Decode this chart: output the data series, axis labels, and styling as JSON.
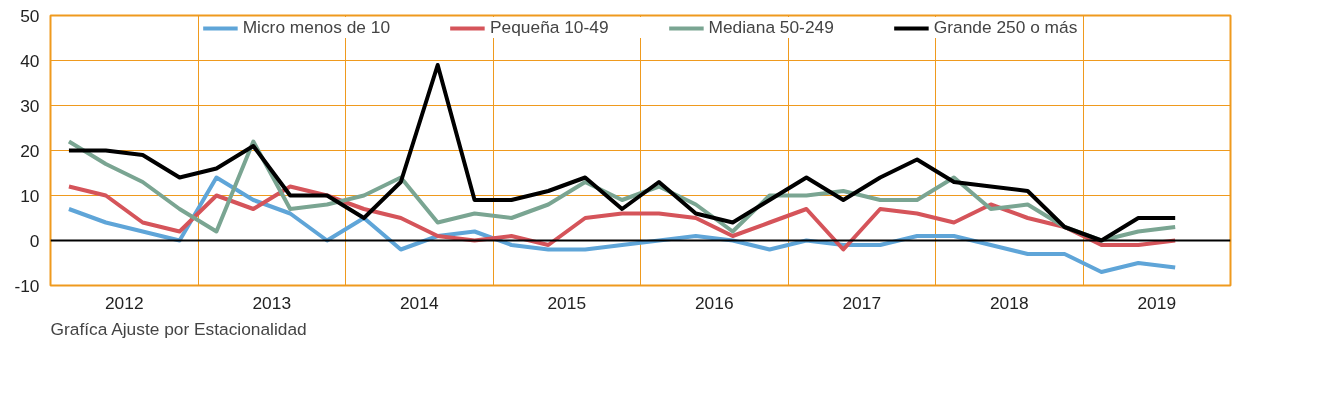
{
  "chart_data": {
    "type": "line",
    "x": [
      2012.125,
      2012.375,
      2012.625,
      2012.875,
      2013.125,
      2013.375,
      2013.625,
      2013.875,
      2014.125,
      2014.375,
      2014.625,
      2014.875,
      2015.125,
      2015.375,
      2015.625,
      2015.875,
      2016.125,
      2016.375,
      2016.625,
      2016.875,
      2017.125,
      2017.375,
      2017.625,
      2017.875,
      2018.125,
      2018.375,
      2018.625,
      2018.875,
      2019.125,
      2019.375,
      2019.625
    ],
    "series": [
      {
        "name": "Micro menos de 10",
        "color": "#5fa5d8",
        "values": [
          7,
          4,
          2,
          0,
          14,
          9,
          6,
          0,
          5,
          -2,
          1,
          2,
          -1,
          -2,
          -2,
          -1,
          0,
          1,
          0,
          -2,
          0,
          -1,
          -1,
          1,
          1,
          -1,
          -3,
          -3,
          -7,
          -5,
          -6
        ]
      },
      {
        "name": "Pequeña 10-49",
        "color": "#d5545a",
        "values": [
          12,
          10,
          4,
          2,
          10,
          7,
          12,
          10,
          7,
          5,
          1,
          0,
          1,
          -1,
          5,
          6,
          6,
          5,
          1,
          4,
          7,
          -2,
          7,
          6,
          4,
          8,
          5,
          3,
          -1,
          -1,
          0
        ]
      },
      {
        "name": "Mediana 50-249",
        "color": "#7aa592",
        "values": [
          22,
          17,
          13,
          7,
          2,
          22,
          7,
          8,
          10,
          14,
          4,
          6,
          5,
          8,
          13,
          9,
          12,
          8,
          2,
          10,
          10,
          11,
          9,
          9,
          14,
          7,
          8,
          3,
          0,
          2,
          3
        ]
      },
      {
        "name": "Grande 250 o más",
        "color": "#000000",
        "values": [
          20,
          20,
          19,
          14,
          16,
          21,
          10,
          10,
          5,
          13,
          39,
          9,
          9,
          11,
          14,
          7,
          13,
          6,
          4,
          9,
          14,
          9,
          14,
          18,
          13,
          12,
          11,
          3,
          0,
          5,
          5
        ]
      }
    ],
    "xlim": [
      2012,
      2020
    ],
    "xticks": [
      {
        "value": 2012.5,
        "label": "2012"
      },
      {
        "value": 2013,
        "label": null
      },
      {
        "value": 2013.5,
        "label": "2013"
      },
      {
        "value": 2014,
        "label": null
      },
      {
        "value": 2014.5,
        "label": "2014"
      },
      {
        "value": 2015,
        "label": null
      },
      {
        "value": 2015.5,
        "label": "2015"
      },
      {
        "value": 2016,
        "label": null
      },
      {
        "value": 2016.5,
        "label": "2016"
      },
      {
        "value": 2017,
        "label": null
      },
      {
        "value": 2017.5,
        "label": "2017"
      },
      {
        "value": 2018,
        "label": null
      },
      {
        "value": 2018.5,
        "label": "2018"
      },
      {
        "value": 2019,
        "label": null
      },
      {
        "value": 2019.5,
        "label": "2019"
      }
    ],
    "ylim": [
      -10,
      50
    ],
    "yticks": [
      -10,
      0,
      10,
      20,
      30,
      40,
      50
    ],
    "ref_lines": [
      {
        "axis": "y",
        "value": 0,
        "color": "#000000"
      }
    ],
    "grid": true,
    "legend": "top",
    "line_style": "solid",
    "annotations": [
      "Grafíca Ajuste por Estacionalidad"
    ]
  }
}
